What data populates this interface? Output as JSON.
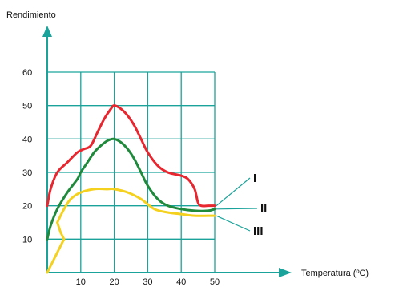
{
  "chart_data": {
    "type": "line",
    "ylabel": "Rendimiento",
    "xlabel": "Temperatura (ºC)",
    "xlim": [
      0,
      50
    ],
    "ylim": [
      0,
      60
    ],
    "x_ticks": [
      "10",
      "20",
      "30",
      "40",
      "50"
    ],
    "y_ticks": [
      "10",
      "20",
      "30",
      "40",
      "50",
      "60"
    ],
    "grid": true,
    "colors": {
      "axis": "#1aa39a",
      "grid": "#1aa39a"
    },
    "series": [
      {
        "name": "I",
        "color": "#e8262f",
        "x": [
          0,
          1,
          3,
          6,
          9,
          11,
          13,
          15,
          17,
          19,
          20,
          22,
          24,
          26,
          28,
          30,
          33,
          36,
          40,
          42,
          44,
          45,
          46,
          48,
          50
        ],
        "y": [
          20,
          25,
          30,
          33,
          36,
          37,
          38,
          42,
          46,
          49,
          50,
          49,
          47,
          44,
          40,
          36,
          32,
          30,
          29,
          28,
          25,
          21,
          20,
          20,
          20
        ]
      },
      {
        "name": "II",
        "color": "#1f8a3c",
        "x": [
          0,
          1,
          3,
          6,
          9,
          10,
          12,
          14,
          16,
          18,
          20,
          22,
          24,
          26,
          28,
          30,
          33,
          36,
          40,
          44,
          48,
          50
        ],
        "y": [
          10,
          14,
          19,
          24,
          28,
          30,
          33,
          36,
          38,
          39.5,
          40,
          39,
          37,
          34,
          30,
          26,
          22,
          20,
          19,
          18.5,
          18.5,
          19
        ]
      },
      {
        "name": "III",
        "color": "#f5d11f",
        "x": [
          0,
          2,
          4,
          5,
          4,
          3,
          5,
          7,
          10,
          14,
          18,
          20,
          24,
          28,
          32,
          36,
          40,
          44,
          48,
          50
        ],
        "y": [
          0,
          4,
          8,
          10,
          12,
          15,
          19,
          22,
          24,
          25,
          25,
          25,
          24,
          22,
          19,
          18,
          17.5,
          17,
          17,
          17
        ]
      }
    ]
  }
}
